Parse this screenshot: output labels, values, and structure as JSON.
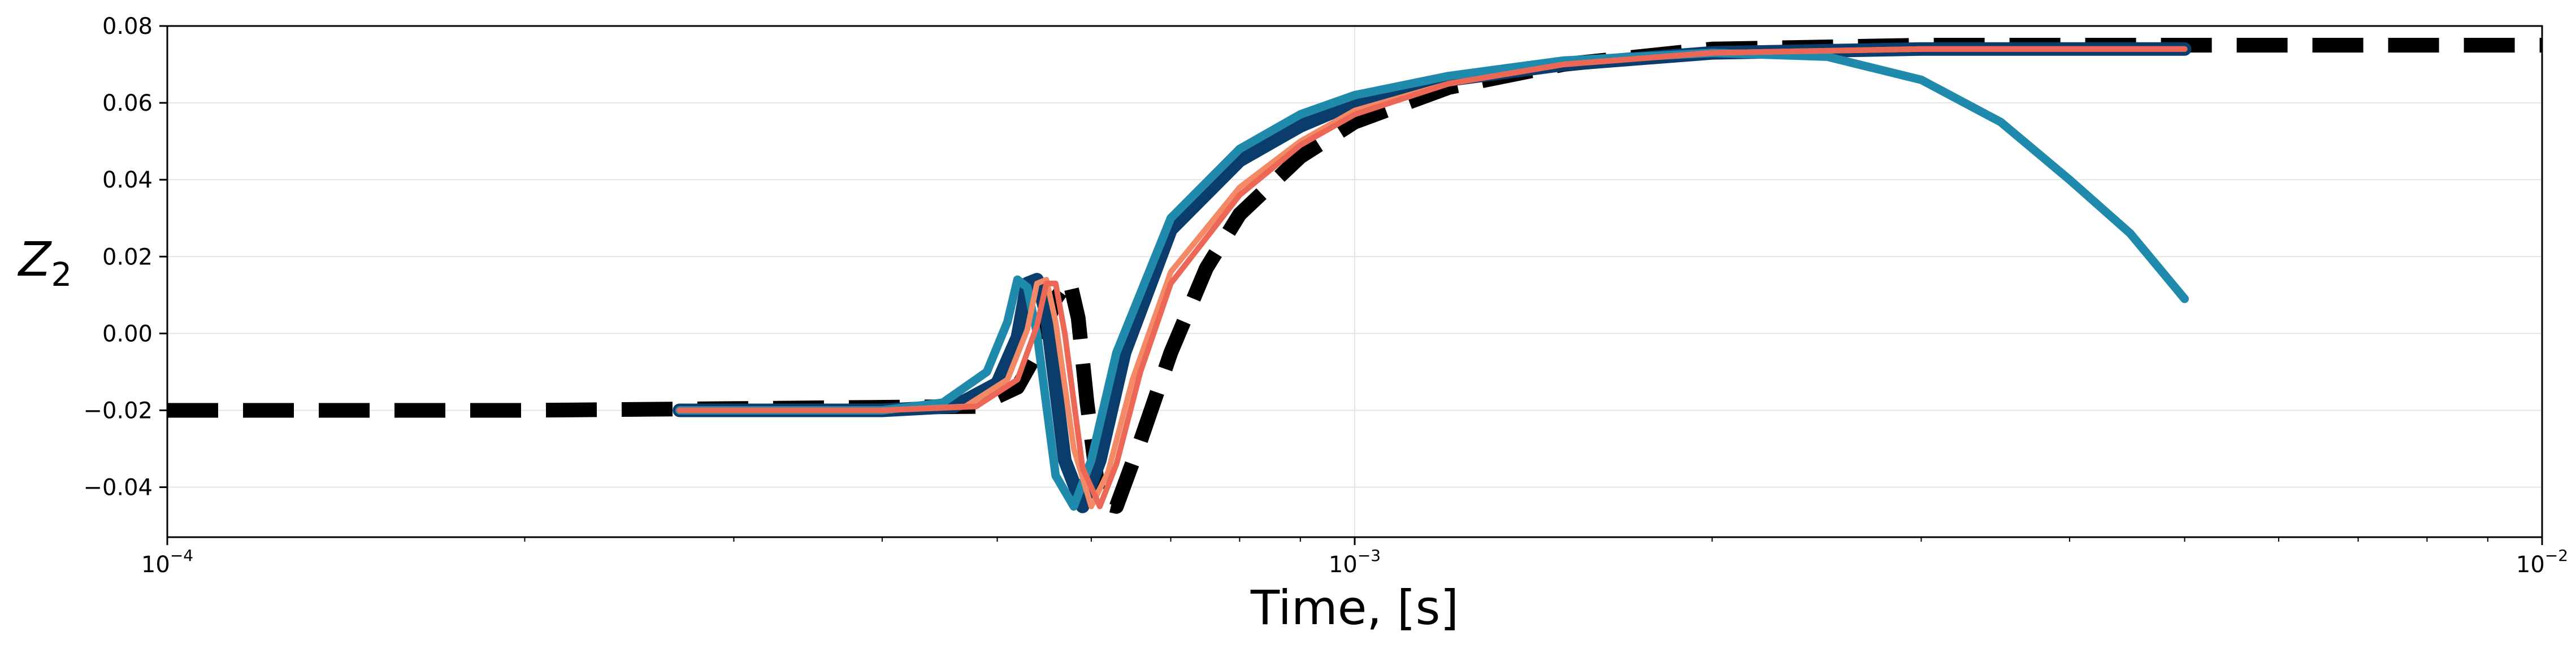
{
  "chart_data": {
    "type": "line",
    "xlabel": "Time, [s]",
    "ylabel": "Z_2",
    "x_scale": "log",
    "xlim": [
      0.0001,
      0.01
    ],
    "ylim": [
      -0.053,
      0.08
    ],
    "grid": true,
    "x_ticks": [
      {
        "value": 0.0001,
        "base": "10",
        "exp": "−4"
      },
      {
        "value": 0.001,
        "base": "10",
        "exp": "−3"
      },
      {
        "value": 0.01,
        "base": "10",
        "exp": "−2"
      }
    ],
    "y_ticks": [
      {
        "value": 0.08,
        "label": "0.08"
      },
      {
        "value": 0.06,
        "label": "0.06"
      },
      {
        "value": 0.04,
        "label": "0.04"
      },
      {
        "value": 0.02,
        "label": "0.02"
      },
      {
        "value": 0.0,
        "label": "0.00"
      },
      {
        "value": -0.02,
        "label": "−0.02"
      },
      {
        "value": -0.04,
        "label": "−0.04"
      }
    ],
    "series": [
      {
        "color": "#000000",
        "style": "dashed",
        "x": [
          0.0001,
          0.0002,
          0.00048,
          0.00052,
          0.00054,
          0.00056,
          0.000575,
          0.000585,
          0.000595,
          0.00061,
          0.00063,
          0.00066,
          0.0007,
          0.00075,
          0.0008,
          0.0009,
          0.001,
          0.0012,
          0.0015,
          0.002,
          0.003,
          0.005,
          0.01
        ],
        "y": [
          -0.02,
          -0.02,
          -0.019,
          -0.014,
          -0.005,
          0.009,
          0.014,
          0.004,
          -0.018,
          -0.044,
          -0.045,
          -0.028,
          -0.005,
          0.017,
          0.031,
          0.046,
          0.055,
          0.064,
          0.07,
          0.074,
          0.075,
          0.075,
          0.075
        ]
      },
      {
        "color": "#0a3d6b",
        "style": "solid",
        "x": [
          0.00027,
          0.0004,
          0.00046,
          0.0005,
          0.00052,
          0.00053,
          0.00054,
          0.00055,
          0.00057,
          0.00059,
          0.00061,
          0.00064,
          0.0007,
          0.0008,
          0.0009,
          0.001,
          0.0012,
          0.0015,
          0.002,
          0.003,
          0.005
        ],
        "y": [
          -0.02,
          -0.02,
          -0.019,
          -0.013,
          -0.001,
          0.013,
          0.014,
          0.005,
          -0.033,
          -0.045,
          -0.033,
          -0.005,
          0.027,
          0.045,
          0.054,
          0.06,
          0.066,
          0.07,
          0.073,
          0.074,
          0.074
        ]
      },
      {
        "color": "#1f8aab",
        "style": "solid",
        "x": [
          0.00027,
          0.0004,
          0.00045,
          0.00049,
          0.00051,
          0.00052,
          0.00053,
          0.00054,
          0.00056,
          0.00058,
          0.0006,
          0.00063,
          0.0007,
          0.0008,
          0.0009,
          0.001,
          0.0012,
          0.0015,
          0.002,
          0.0025,
          0.003,
          0.0035,
          0.004,
          0.0045,
          0.005
        ],
        "y": [
          -0.02,
          -0.02,
          -0.018,
          -0.01,
          0.003,
          0.014,
          0.012,
          0.0,
          -0.037,
          -0.045,
          -0.033,
          -0.005,
          0.03,
          0.048,
          0.057,
          0.062,
          0.067,
          0.071,
          0.073,
          0.072,
          0.066,
          0.055,
          0.04,
          0.026,
          0.009
        ]
      },
      {
        "color": "#f48a65",
        "style": "solid",
        "x": [
          0.00027,
          0.0004,
          0.00047,
          0.00051,
          0.00053,
          0.00054,
          0.00055,
          0.00056,
          0.00058,
          0.0006,
          0.00062,
          0.00065,
          0.0007,
          0.0008,
          0.0009,
          0.001,
          0.0012,
          0.0015,
          0.002,
          0.003,
          0.005
        ],
        "y": [
          -0.02,
          -0.02,
          -0.019,
          -0.012,
          0.001,
          0.013,
          0.014,
          0.003,
          -0.03,
          -0.045,
          -0.036,
          -0.012,
          0.016,
          0.038,
          0.05,
          0.058,
          0.065,
          0.07,
          0.073,
          0.074,
          0.074
        ]
      },
      {
        "color": "#ec6755",
        "style": "solid",
        "x": [
          0.00027,
          0.0004,
          0.00048,
          0.00052,
          0.00054,
          0.00055,
          0.00056,
          0.00057,
          0.00059,
          0.00061,
          0.00063,
          0.00066,
          0.0007,
          0.0008,
          0.0009,
          0.001,
          0.0012,
          0.0015,
          0.002,
          0.003,
          0.005
        ],
        "y": [
          -0.02,
          -0.02,
          -0.019,
          -0.012,
          0.002,
          0.013,
          0.013,
          0.0,
          -0.035,
          -0.045,
          -0.034,
          -0.01,
          0.013,
          0.036,
          0.049,
          0.057,
          0.065,
          0.07,
          0.073,
          0.074,
          0.074
        ]
      }
    ]
  }
}
